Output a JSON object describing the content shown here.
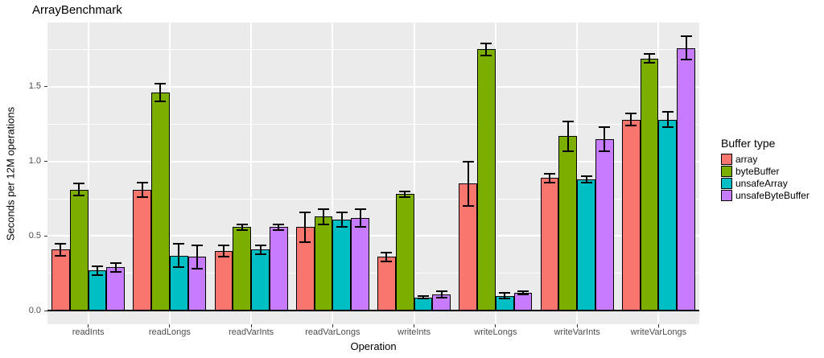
{
  "header": {
    "title": "ArrayBenchmark"
  },
  "chart_data": {
    "type": "bar",
    "title": "ArrayBenchmark",
    "xlabel": "Operation",
    "ylabel": "Seconds per 12M operations",
    "legend_title": "Buffer type",
    "legend_position": "right",
    "grid": true,
    "error_bars": true,
    "categories": [
      "readInts",
      "readLongs",
      "readVarInts",
      "readVarLongs",
      "writeInts",
      "writeLongs",
      "writeVarInts",
      "writeVarLongs"
    ],
    "series": [
      {
        "name": "array",
        "color": "#F8766D",
        "values": [
          0.41,
          0.81,
          0.4,
          0.56,
          0.36,
          0.85,
          0.89,
          1.28
        ],
        "errors": [
          0.04,
          0.05,
          0.04,
          0.1,
          0.03,
          0.15,
          0.03,
          0.04
        ]
      },
      {
        "name": "byteBuffer",
        "color": "#7CAE00",
        "values": [
          0.81,
          1.46,
          0.56,
          0.63,
          0.78,
          1.75,
          1.17,
          1.69
        ],
        "errors": [
          0.04,
          0.06,
          0.02,
          0.05,
          0.02,
          0.04,
          0.1,
          0.03
        ]
      },
      {
        "name": "unsafeArray",
        "color": "#00BFC4",
        "values": [
          0.27,
          0.37,
          0.41,
          0.61,
          0.09,
          0.1,
          0.88,
          1.28
        ],
        "errors": [
          0.03,
          0.08,
          0.03,
          0.05,
          0.01,
          0.02,
          0.02,
          0.05
        ]
      },
      {
        "name": "unsafeByteBuffer",
        "color": "#C77CFF",
        "values": [
          0.29,
          0.36,
          0.56,
          0.62,
          0.11,
          0.12,
          1.15,
          1.76
        ],
        "errors": [
          0.03,
          0.08,
          0.02,
          0.06,
          0.02,
          0.01,
          0.08,
          0.08
        ]
      }
    ],
    "yticks": [
      "0.0",
      "0.5",
      "1.0",
      "1.5"
    ],
    "ytick_values": [
      0,
      0.5,
      1.0,
      1.5
    ],
    "minor_tick_values": [
      0.25,
      0.75,
      1.25,
      1.75
    ],
    "ylim": [
      -0.09,
      1.93
    ],
    "colors": {
      "panel_bg": "#EBEBEB",
      "grid": "#FFFFFF",
      "axis_line": "#000000",
      "tick_mark": "#333333",
      "tick_label": "#4D4D4D",
      "text": "#000000",
      "page_bg": "#FFFFFF"
    }
  }
}
